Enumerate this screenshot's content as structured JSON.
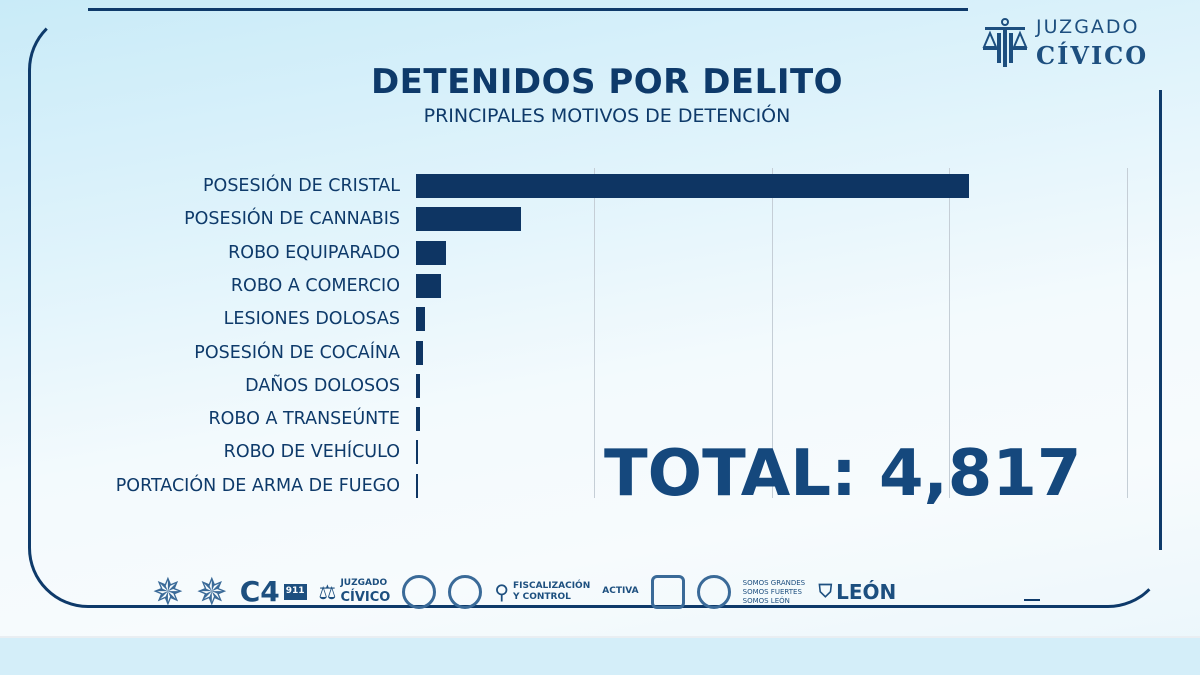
{
  "brand": {
    "line1": "JUZGADO",
    "line2": "CÍVICO",
    "icon": "scales-of-justice-icon"
  },
  "colors": {
    "primary": "#0e3a6a",
    "bar": "#0e3563",
    "total": "#15487d",
    "background": "#dff3fb"
  },
  "chart_data": {
    "type": "bar",
    "orientation": "horizontal",
    "title": "DETENIDOS POR DELITO",
    "subtitle": "PRINCIPALES MOTIVOS DE DETENCIÓN",
    "categories": [
      "POSESIÓN DE CRISTAL",
      "POSESIÓN DE CANNABIS",
      "ROBO EQUIPARADO",
      "ROBO A COMERCIO",
      "LESIONES DOLOSAS",
      "POSESIÓN DE COCAÍNA",
      "DAÑOS DOLOSOS",
      "ROBO A TRANSEÚNTE",
      "ROBO DE VEHÍCULO",
      "PORTACIÓN DE ARMA DE FUEGO"
    ],
    "values": [
      3110,
      590,
      170,
      140,
      50,
      40,
      25,
      20,
      12,
      10
    ],
    "xlim": [
      0,
      4000
    ],
    "grid": true,
    "gridlines_x": [
      1000,
      2000,
      3000,
      4000
    ],
    "annotation": "TOTAL: 4,817"
  },
  "footer": {
    "logos": [
      "police-badge",
      "police-badge",
      "C4",
      "911",
      "JUZGADO CÍVICO",
      "protección civil",
      "seal",
      "FISCALIZACIÓN Y CONTROL",
      "ACTIVA",
      "shield",
      "seal",
      "SOMOS GRANDES SOMOS FUERTES SOMOS LEÓN",
      "LEÓN"
    ],
    "c4": "C4",
    "c4_sub": "911",
    "juzgado_1": "JUZGADO",
    "juzgado_2": "CÍVICO",
    "fisc_1": "FISCALIZACIÓN",
    "fisc_2": "Y CONTROL",
    "activa": "ACTIVA",
    "somos": "SOMOS GRANDES SOMOS FUERTES SOMOS LEÓN",
    "leon": "LEÓN"
  }
}
